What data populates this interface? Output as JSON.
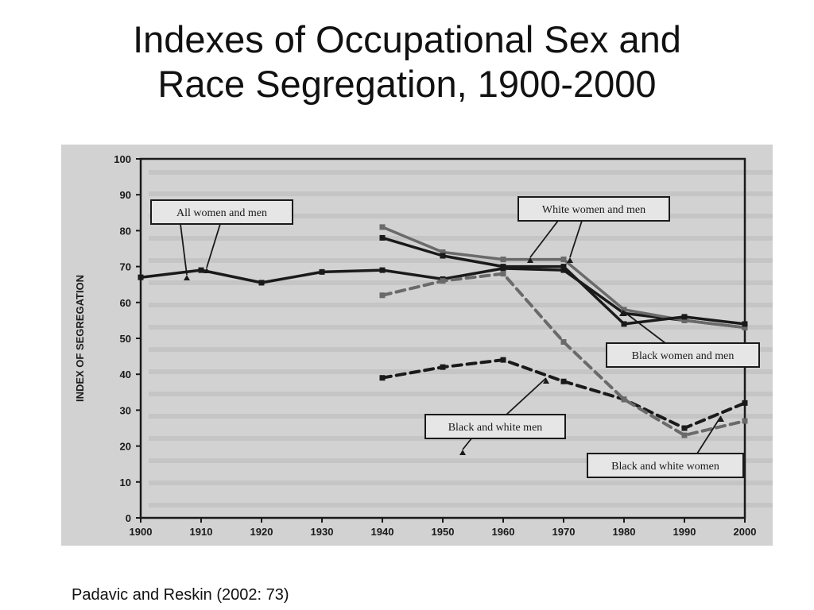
{
  "slide": {
    "title_line1": "Indexes of Occupational Sex and",
    "title_line2": "Race Segregation, 1900-2000",
    "caption": "Padavic and Reskin (2002: 73)"
  },
  "colors": {
    "background": "#ffffff",
    "scan_paper": "#d2d2d2",
    "ink": "#1a1a1a",
    "gray_series": "#6a6a6a"
  },
  "chart_data": {
    "type": "line",
    "ylabel": "INDEX OF SEGREGATION",
    "xlabel": "",
    "xlim": [
      1900,
      2000
    ],
    "ylim": [
      0,
      100
    ],
    "x_ticks": [
      1900,
      1910,
      1920,
      1930,
      1940,
      1950,
      1960,
      1970,
      1980,
      1990,
      2000
    ],
    "y_ticks": [
      0,
      10,
      20,
      30,
      40,
      50,
      60,
      70,
      80,
      90,
      100
    ],
    "grid": false,
    "series": [
      {
        "name": "All women and men",
        "style": "solid",
        "color": "#1a1a1a",
        "points": [
          [
            1900,
            67
          ],
          [
            1910,
            69
          ],
          [
            1920,
            65.5
          ],
          [
            1930,
            68.5
          ],
          [
            1940,
            69
          ],
          [
            1950,
            66.5
          ],
          [
            1960,
            69.5
          ],
          [
            1970,
            69
          ],
          [
            1980,
            57
          ],
          [
            1990,
            55
          ],
          [
            2000,
            53
          ]
        ]
      },
      {
        "name": "White women and men",
        "style": "solid",
        "color": "#6a6a6a",
        "points": [
          [
            1940,
            81
          ],
          [
            1950,
            74
          ],
          [
            1960,
            72
          ],
          [
            1970,
            72
          ],
          [
            1980,
            58
          ],
          [
            1990,
            55
          ],
          [
            2000,
            53
          ]
        ]
      },
      {
        "name": "Black women and men",
        "style": "solid",
        "color": "#1a1a1a",
        "points": [
          [
            1940,
            78
          ],
          [
            1950,
            73
          ],
          [
            1960,
            70
          ],
          [
            1970,
            70
          ],
          [
            1980,
            54
          ],
          [
            1990,
            56
          ],
          [
            2000,
            54
          ]
        ]
      },
      {
        "name": "Black and white men",
        "style": "dashed",
        "color": "#1a1a1a",
        "points": [
          [
            1940,
            39
          ],
          [
            1950,
            42
          ],
          [
            1960,
            44
          ],
          [
            1970,
            38
          ],
          [
            1980,
            33
          ],
          [
            1990,
            25
          ],
          [
            2000,
            32
          ]
        ]
      },
      {
        "name": "Black and white women",
        "style": "dashed",
        "color": "#6a6a6a",
        "points": [
          [
            1940,
            62
          ],
          [
            1950,
            66
          ],
          [
            1960,
            68
          ],
          [
            1970,
            49
          ],
          [
            1980,
            33
          ],
          [
            1990,
            23
          ],
          [
            2000,
            27
          ]
        ]
      }
    ],
    "annotations": [
      {
        "text": "All women and men",
        "series": 0,
        "placement": "upper-left"
      },
      {
        "text": "White women and men",
        "series": 1,
        "placement": "upper-right"
      },
      {
        "text": "Black women and men",
        "series": 2,
        "placement": "middle-right"
      },
      {
        "text": "Black and white men",
        "series": 3,
        "placement": "lower-middle"
      },
      {
        "text": "Black and white women",
        "series": 4,
        "placement": "lower-right"
      }
    ]
  }
}
